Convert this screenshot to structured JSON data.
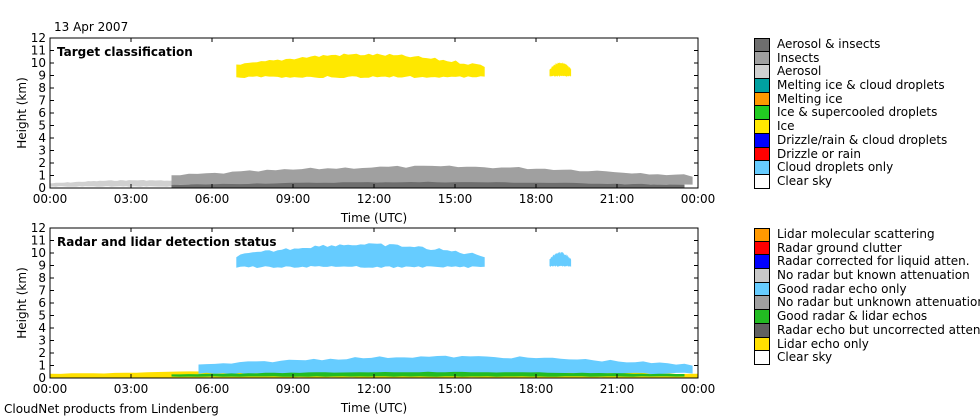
{
  "header": {
    "date": "13 Apr 2007"
  },
  "footer": {
    "credit": "CloudNet products from Lindenberg"
  },
  "chart_data": [
    {
      "type": "heatmap",
      "title": "Target classification",
      "xlabel": "Time (UTC)",
      "ylabel": "Height (km)",
      "xlim": [
        0,
        24
      ],
      "ylim": [
        0,
        12
      ],
      "xticks": [
        "00:00",
        "03:00",
        "06:00",
        "09:00",
        "12:00",
        "15:00",
        "18:00",
        "21:00",
        "00:00"
      ],
      "yticks": [
        "0",
        "1",
        "2",
        "3",
        "4",
        "5",
        "6",
        "7",
        "8",
        "9",
        "10",
        "11",
        "12"
      ],
      "legend": [
        {
          "label": "Aerosol & insects",
          "color": "#6e6e6e"
        },
        {
          "label": "Insects",
          "color": "#a0a0a0"
        },
        {
          "label": "Aerosol",
          "color": "#d0d0d0"
        },
        {
          "label": "Melting ice & cloud droplets",
          "color": "#00a0a0"
        },
        {
          "label": "Melting ice",
          "color": "#ff9900"
        },
        {
          "label": "Ice & supercooled droplets",
          "color": "#22cc22"
        },
        {
          "label": "Ice",
          "color": "#ffe800"
        },
        {
          "label": "Drizzle/rain & cloud droplets",
          "color": "#0000ff"
        },
        {
          "label": "Drizzle or rain",
          "color": "#ff0000"
        },
        {
          "label": "Cloud droplets only",
          "color": "#66ccff"
        },
        {
          "label": "Clear sky",
          "color": "#ffffff"
        }
      ],
      "regions": [
        {
          "class": "Aerosol",
          "color": "#d0d0d0",
          "time_range": [
            0,
            6.5
          ],
          "height_range": [
            0.1,
            0.65
          ]
        },
        {
          "class": "Insects",
          "color": "#a0a0a0",
          "time_range": [
            4.5,
            23.8
          ],
          "height_range": [
            0.2,
            1.8
          ]
        },
        {
          "class": "Aerosol & insects",
          "color": "#6e6e6e",
          "time_range": [
            4.5,
            23.5
          ],
          "height_range": [
            0,
            0.5
          ]
        },
        {
          "class": "Ice",
          "color": "#ffe800",
          "time_range": [
            6.9,
            16.1
          ],
          "height_range": [
            8.8,
            10.8
          ]
        },
        {
          "class": "Ice",
          "color": "#ffe800",
          "time_range": [
            18.5,
            19.3
          ],
          "height_range": [
            8.9,
            10.1
          ]
        }
      ]
    },
    {
      "type": "heatmap",
      "title": "Radar and lidar detection status",
      "xlabel": "Time (UTC)",
      "ylabel": "Height (km)",
      "xlim": [
        0,
        24
      ],
      "ylim": [
        0,
        12
      ],
      "xticks": [
        "00:00",
        "03:00",
        "06:00",
        "09:00",
        "12:00",
        "15:00",
        "18:00",
        "21:00",
        "00:00"
      ],
      "yticks": [
        "0",
        "1",
        "2",
        "3",
        "4",
        "5",
        "6",
        "7",
        "8",
        "9",
        "10",
        "11",
        "12"
      ],
      "legend": [
        {
          "label": "Lidar molecular scattering",
          "color": "#ff9900"
        },
        {
          "label": "Radar ground clutter",
          "color": "#ff0000"
        },
        {
          "label": "Radar corrected for liquid atten.",
          "color": "#0000ff"
        },
        {
          "label": "No radar but known attenuation",
          "color": "#c8c8c8"
        },
        {
          "label": "Good radar echo only",
          "color": "#66ccff"
        },
        {
          "label": "No radar but unknown attenuation",
          "color": "#a0a0a0"
        },
        {
          "label": "Good radar & lidar echos",
          "color": "#22bb22"
        },
        {
          "label": "Radar echo but uncorrected atten.",
          "color": "#606060"
        },
        {
          "label": "Lidar echo only",
          "color": "#ffe000"
        },
        {
          "label": "Clear sky",
          "color": "#ffffff"
        }
      ],
      "regions": [
        {
          "class": "Lidar echo only",
          "color": "#ffe000",
          "time_range": [
            0,
            24
          ],
          "height_range": [
            0,
            0.65
          ]
        },
        {
          "class": "Good radar echo only",
          "color": "#66ccff",
          "time_range": [
            5.5,
            23.8
          ],
          "height_range": [
            0.3,
            1.8
          ]
        },
        {
          "class": "Good radar & lidar echos",
          "color": "#22bb22",
          "time_range": [
            4.5,
            23.5
          ],
          "height_range": [
            0.1,
            0.5
          ]
        },
        {
          "class": "Good radar echo only",
          "color": "#66ccff",
          "time_range": [
            6.9,
            16.1
          ],
          "height_range": [
            8.8,
            10.8
          ]
        },
        {
          "class": "Good radar echo only",
          "color": "#66ccff",
          "time_range": [
            18.5,
            19.3
          ],
          "height_range": [
            8.9,
            10.1
          ]
        }
      ]
    }
  ]
}
